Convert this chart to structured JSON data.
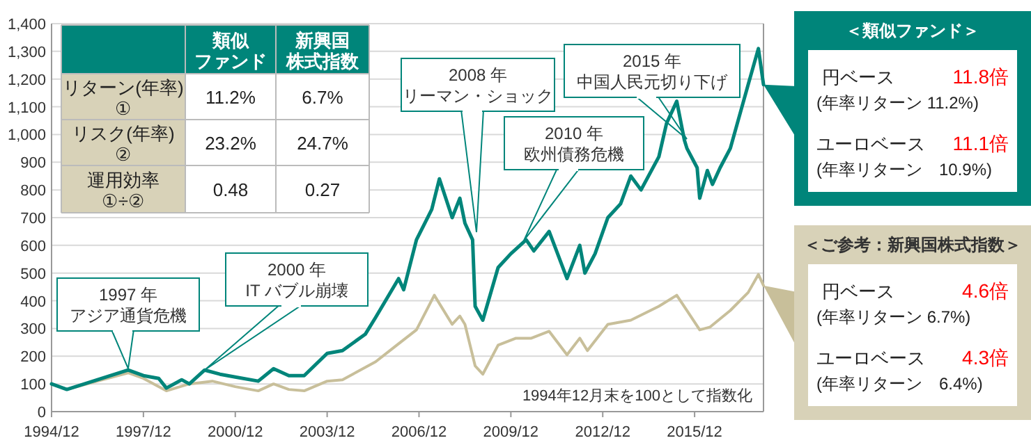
{
  "chart_data": {
    "type": "line",
    "xlim": [
      "1994-12",
      "2018-03"
    ],
    "ylim": [
      0,
      1400
    ],
    "xticks": [
      {
        "value": "1994-12",
        "label": "1994/12"
      },
      {
        "value": "1997-12",
        "label": "1997/12"
      },
      {
        "value": "2000-12",
        "label": "2000/12"
      },
      {
        "value": "2003-12",
        "label": "2003/12"
      },
      {
        "value": "2006-12",
        "label": "2006/12"
      },
      {
        "value": "2009-12",
        "label": "2009/12"
      },
      {
        "value": "2012-12",
        "label": "2012/12"
      },
      {
        "value": "2015-12",
        "label": "2015/12"
      }
    ],
    "yticks": [
      0,
      100,
      200,
      300,
      400,
      500,
      600,
      700,
      800,
      900,
      {
        "value": 1000,
        "label": "1,000"
      },
      {
        "value": 1100,
        "label": "1,100"
      },
      {
        "value": 1200,
        "label": "1,200"
      },
      {
        "value": 1300,
        "label": "1,300"
      },
      {
        "value": 1400,
        "label": "1,400"
      }
    ],
    "grid": "y",
    "series": [
      {
        "color": "#00857a",
        "x": [
          "1994-12",
          "1995-06",
          "1996-06",
          "1997-06",
          "1997-12",
          "1998-06",
          "1998-09",
          "1999-03",
          "1999-06",
          "1999-12",
          "2000-06",
          "2000-12",
          "2001-09",
          "2002-03",
          "2002-09",
          "2003-03",
          "2003-12",
          "2004-06",
          "2005-03",
          "2005-07",
          "2006-04",
          "2006-06",
          "2006-11",
          "2007-05",
          "2007-08",
          "2008-01",
          "2008-04",
          "2008-06",
          "2008-09",
          "2008-10",
          "2009-01",
          "2009-07",
          "2009-12",
          "2010-06",
          "2010-09",
          "2011-03",
          "2011-10",
          "2012-03",
          "2012-05",
          "2012-09",
          "2013-02",
          "2013-07",
          "2013-11",
          "2014-03",
          "2014-10",
          "2015-01",
          "2015-05",
          "2015-08",
          "2015-09",
          "2016-01",
          "2016-02",
          "2016-05",
          "2016-07",
          "2016-10",
          "2017-02",
          "2017-09",
          "2018-01",
          "2018-03"
        ],
        "values": [
          100,
          80,
          115,
          150,
          130,
          120,
          85,
          115,
          100,
          150,
          135,
          125,
          110,
          155,
          130,
          130,
          210,
          220,
          280,
          340,
          480,
          440,
          620,
          730,
          840,
          700,
          770,
          680,
          620,
          380,
          330,
          520,
          570,
          620,
          580,
          650,
          480,
          600,
          500,
          570,
          700,
          750,
          850,
          800,
          920,
          1040,
          1120,
          980,
          950,
          880,
          770,
          870,
          820,
          880,
          950,
          1180,
          1310,
          1180
        ]
      },
      {
        "color": "#c8bf9a",
        "x": [
          "1994-12",
          "1995-06",
          "1996-06",
          "1997-06",
          "1997-12",
          "1998-09",
          "1999-06",
          "2000-03",
          "2000-12",
          "2001-09",
          "2002-03",
          "2002-09",
          "2003-03",
          "2003-12",
          "2004-06",
          "2005-07",
          "2006-04",
          "2006-11",
          "2007-06",
          "2008-01",
          "2008-04",
          "2008-06",
          "2008-10",
          "2009-01",
          "2009-07",
          "2010-02",
          "2010-08",
          "2011-03",
          "2011-10",
          "2012-03",
          "2012-06",
          "2013-02",
          "2013-11",
          "2014-10",
          "2015-05",
          "2015-09",
          "2016-02",
          "2016-06",
          "2017-02",
          "2017-09",
          "2018-01",
          "2018-03"
        ],
        "values": [
          100,
          80,
          110,
          140,
          120,
          75,
          100,
          110,
          90,
          75,
          100,
          80,
          75,
          110,
          115,
          180,
          245,
          295,
          420,
          315,
          345,
          315,
          165,
          135,
          240,
          265,
          265,
          290,
          205,
          265,
          220,
          315,
          330,
          380,
          420,
          365,
          295,
          305,
          365,
          430,
          495,
          455
        ]
      }
    ],
    "annotations": [
      "1997 年",
      "アジア通貨危機",
      "2000 年",
      "IT バブル崩壊",
      "2008 年",
      "リーマン・ショック",
      "2010 年",
      "欧州債務危機",
      "2015 年",
      "中国人民元切り下げ",
      "1994年12月末を100として指数化",
      "類似",
      "ファンド",
      "新興国",
      "株式指数",
      "リターン(年率)",
      "①",
      "11.2%",
      "6.7%",
      "リスク(年率)",
      "②",
      "23.2%",
      "24.7%",
      "運用効率",
      "①÷②",
      "0.48",
      "0.27",
      "＜類似ファンド＞",
      "円ベース",
      "11.8倍",
      "(年率リターン 11.2%)",
      "ユーロベース",
      "11.1倍",
      "(年率リターン　10.9%)",
      "＜ご参考：新興国株式指数＞",
      "円ベース",
      "4.6倍",
      "(年率リターン 6.7%)",
      "ユーロベース",
      "4.3倍",
      "(年率リターン　6.4%)"
    ]
  }
}
